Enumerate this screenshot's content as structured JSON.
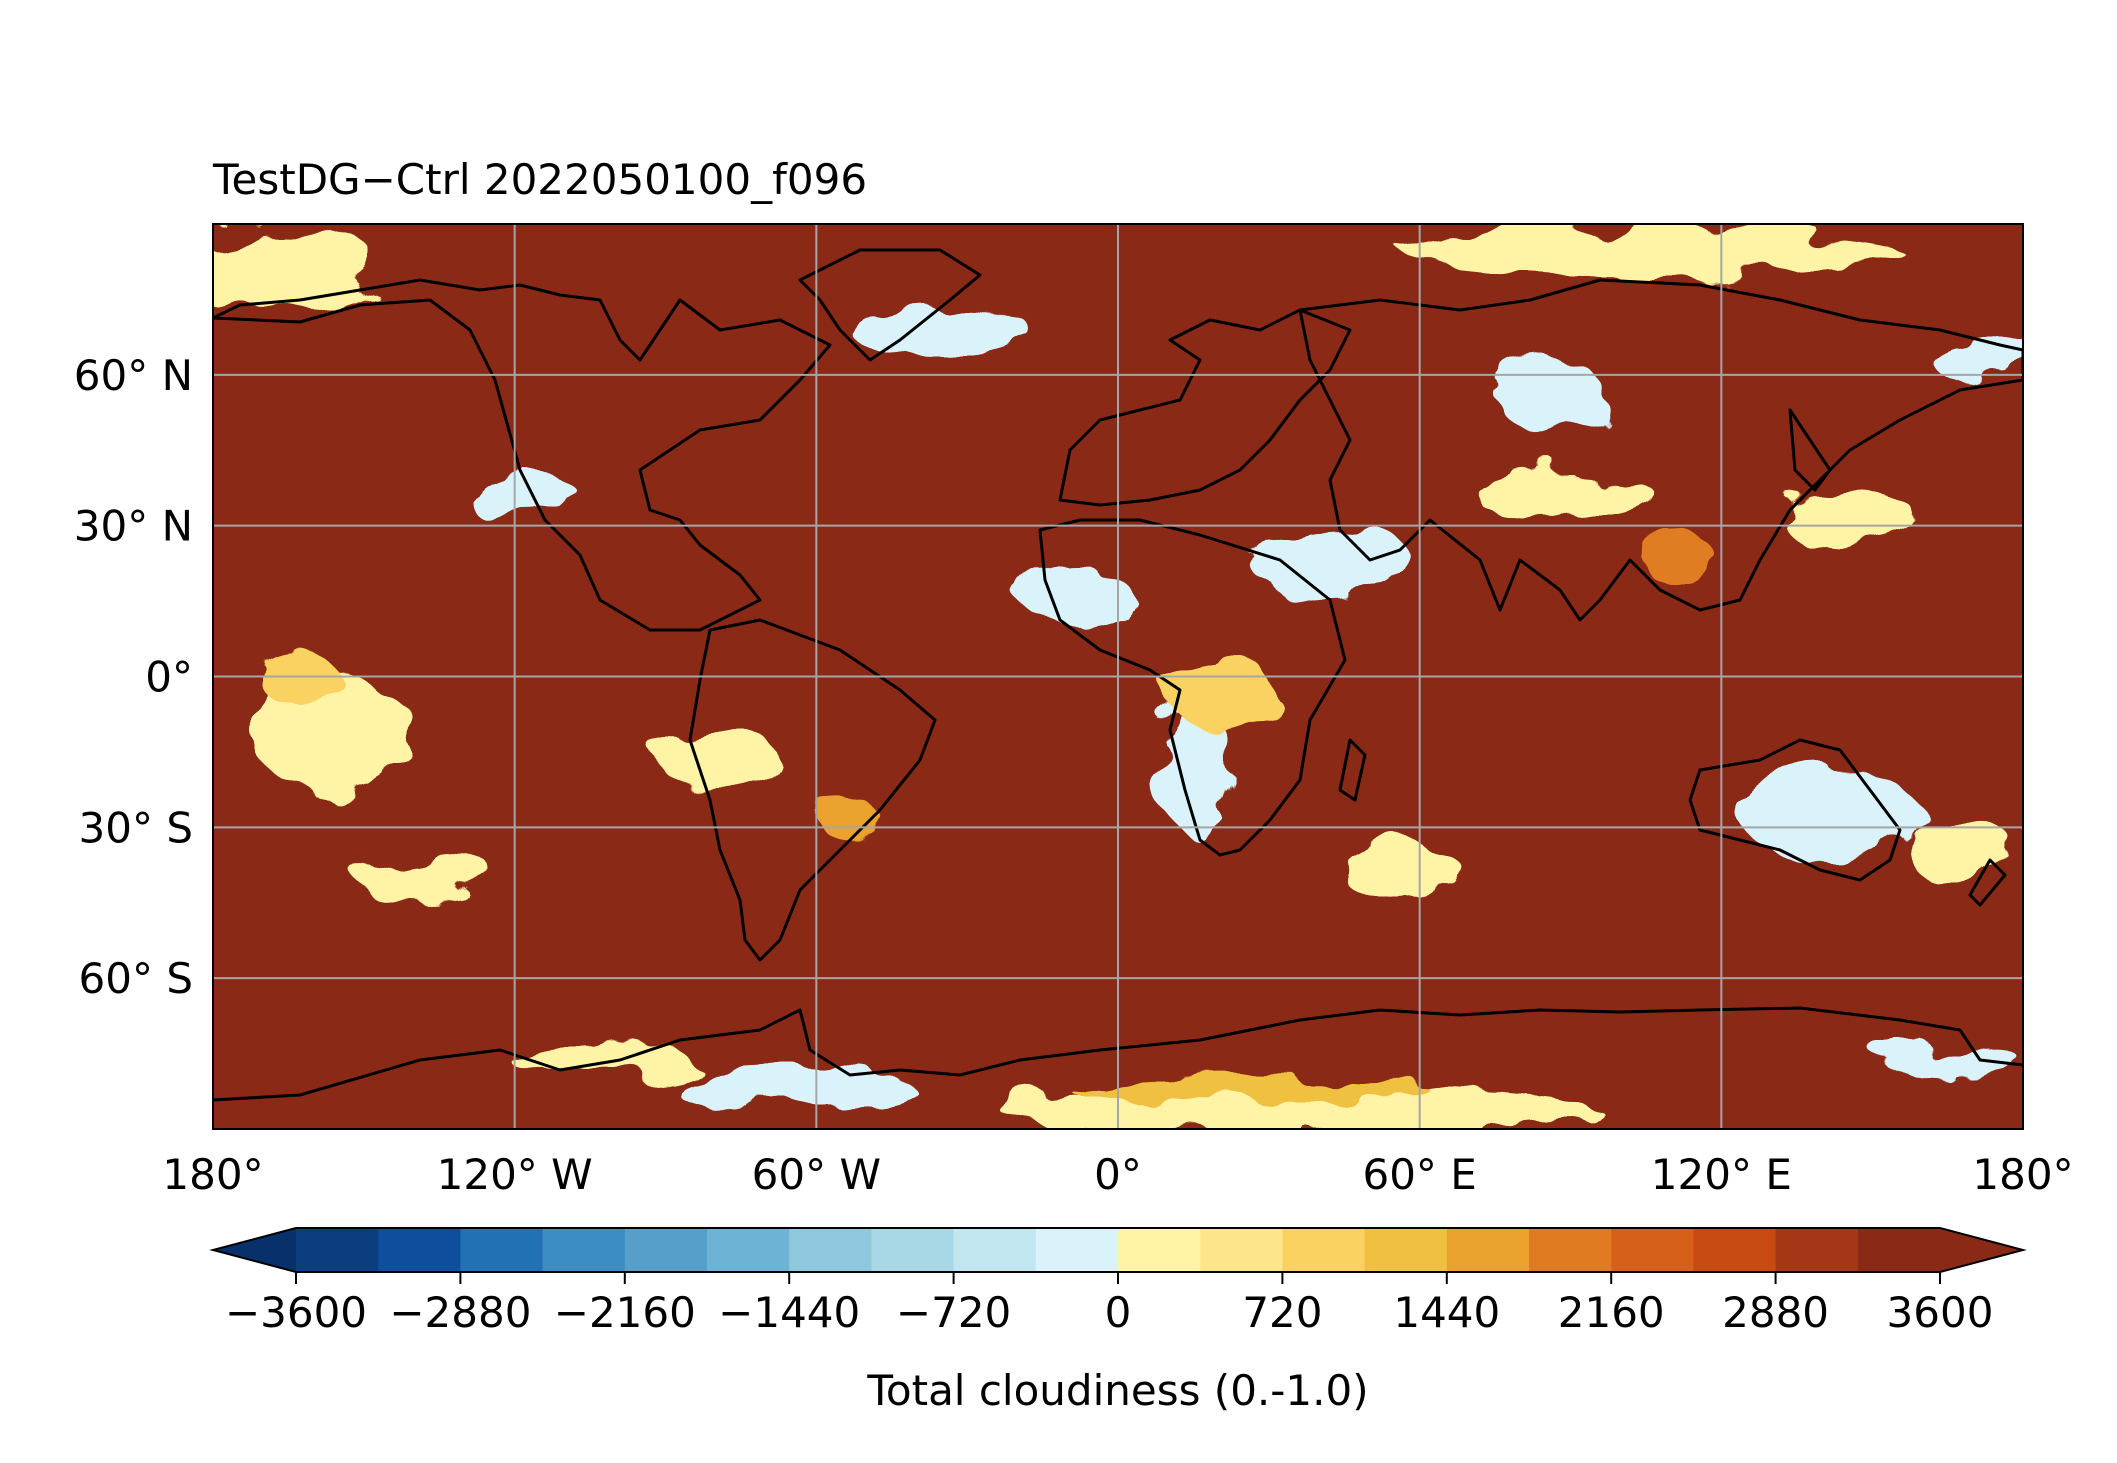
{
  "title": "TestDG−Ctrl 2022050100_f096",
  "lat_ticks": [
    {
      "lat": 60,
      "label": "60° N"
    },
    {
      "lat": 30,
      "label": "30° N"
    },
    {
      "lat": 0,
      "label": "0°"
    },
    {
      "lat": -30,
      "label": "30° S"
    },
    {
      "lat": -60,
      "label": "60° S"
    }
  ],
  "lon_ticks": [
    {
      "lon": -180,
      "label": "180°"
    },
    {
      "lon": -120,
      "label": "120° W"
    },
    {
      "lon": -60,
      "label": "60° W"
    },
    {
      "lon": 0,
      "label": "0°"
    },
    {
      "lon": 60,
      "label": "60° E"
    },
    {
      "lon": 120,
      "label": "120° E"
    },
    {
      "lon": 180,
      "label": "180°"
    }
  ],
  "colorbar": {
    "label": "Total cloudiness (0.-1.0)",
    "min": -3600,
    "max": 3600,
    "step": 360,
    "extend": "both",
    "ticks": [
      {
        "value": -3600,
        "label": "−3600"
      },
      {
        "value": -2880,
        "label": "−2880"
      },
      {
        "value": -2160,
        "label": "−2160"
      },
      {
        "value": -1440,
        "label": "−1440"
      },
      {
        "value": -720,
        "label": "−720"
      },
      {
        "value": 0,
        "label": "0"
      },
      {
        "value": 720,
        "label": "720"
      },
      {
        "value": 1440,
        "label": "1440"
      },
      {
        "value": 2160,
        "label": "2160"
      },
      {
        "value": 2880,
        "label": "2880"
      },
      {
        "value": 3600,
        "label": "3600"
      }
    ],
    "colors": [
      "#08306b",
      "#0b3d7f",
      "#0d4f9c",
      "#2171b5",
      "#3d8dc5",
      "#569fcb",
      "#6cb3d6",
      "#8fc7dc",
      "#a8d8e5",
      "#c2e6ef",
      "#daf2fa",
      "#fff3a6",
      "#fde68a",
      "#f9d262",
      "#f0c040",
      "#eaa12e",
      "#e07b22",
      "#d6601a",
      "#c94a10",
      "#a53716",
      "#8a2a16"
    ],
    "under_color": "#08306b",
    "over_color": "#8a2a16"
  },
  "map": {
    "projection": "PlateCarree",
    "lon_range": [
      -180,
      180
    ],
    "lat_range": [
      -90,
      90
    ],
    "gridlines": true,
    "coastlines": true,
    "background_color": "#8a2a16"
  }
}
